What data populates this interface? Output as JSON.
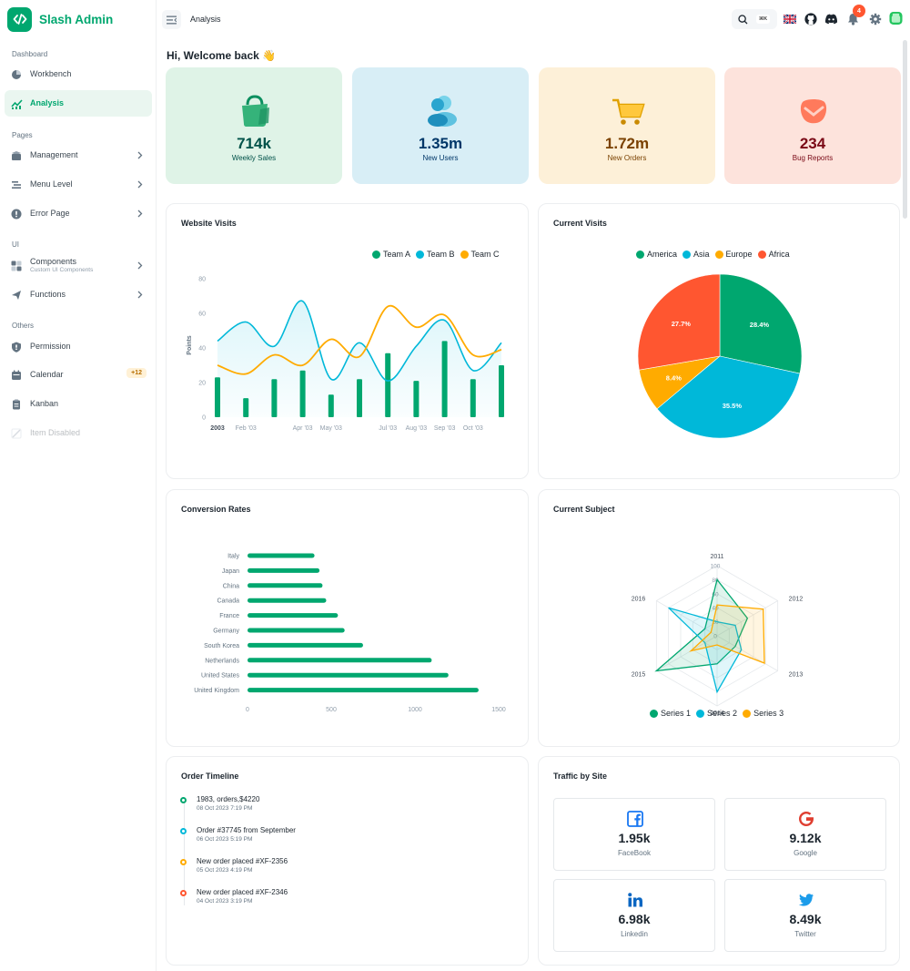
{
  "app": {
    "name": "Slash Admin"
  },
  "header": {
    "breadcrumb": "Analysis",
    "search_shortcut": "⌘K",
    "notification_count": "4"
  },
  "sidebar": {
    "sections": [
      {
        "label": "Dashboard"
      },
      {
        "label": "Pages"
      },
      {
        "label": "UI"
      },
      {
        "label": "Others"
      }
    ],
    "items": [
      {
        "label": "Workbench",
        "icon": "workbench-icon"
      },
      {
        "label": "Analysis",
        "icon": "analysis-icon",
        "active": true
      },
      {
        "label": "Management",
        "icon": "management-icon"
      },
      {
        "label": "Menu Level",
        "icon": "menu-level-icon"
      },
      {
        "label": "Error Page",
        "icon": "error-icon"
      },
      {
        "label": "Components",
        "sublabel": "Custom UI Components",
        "icon": "components-icon"
      },
      {
        "label": "Functions",
        "icon": "functions-icon"
      },
      {
        "label": "Permission",
        "icon": "permission-icon"
      },
      {
        "label": "Calendar",
        "icon": "calendar-icon",
        "badge": "+12"
      },
      {
        "label": "Kanban",
        "icon": "kanban-icon"
      },
      {
        "label": "Item Disabled",
        "icon": "disabled-icon",
        "disabled": true
      }
    ]
  },
  "welcome": "Hi, Welcome back 👋",
  "stats": [
    {
      "value": "714k",
      "label": "Weekly Sales",
      "bg": "#dff3e7",
      "color": "#005249"
    },
    {
      "value": "1.35m",
      "label": "New Users",
      "bg": "#d8eef6",
      "color": "#003768"
    },
    {
      "value": "1.72m",
      "label": "New Orders",
      "bg": "#fdf0d8",
      "color": "#7a4100"
    },
    {
      "value": "234",
      "label": "Bug Reports",
      "bg": "#fde3dc",
      "color": "#7a0916"
    }
  ],
  "cards": {
    "website_visits": "Website Visits",
    "current_visits": "Current Visits",
    "conversion_rates": "Conversion Rates",
    "current_subject": "Current Subject",
    "order_timeline": "Order Timeline",
    "traffic_by_site": "Traffic by Site"
  },
  "chart_data": [
    {
      "type": "line",
      "title": "Website Visits",
      "ylabel": "Points",
      "xlabel": "",
      "ylim": [
        0,
        80
      ],
      "yticks": [
        0,
        20,
        40,
        60,
        80
      ],
      "x": [
        "2003-01-01",
        "2003-02-01",
        "2003-03-01",
        "2003-04-01",
        "2003-05-01",
        "2003-06-01",
        "2003-07-01",
        "2003-08-01",
        "2003-09-01",
        "2003-10-01",
        "2003-11-01"
      ],
      "x_tick_labels": [
        "2003",
        "Feb '03",
        "",
        "Apr '03",
        "May '03",
        "",
        "Jul '03",
        "Aug '03",
        "Sep '03",
        "Oct '03",
        ""
      ],
      "series": [
        {
          "name": "Team A",
          "kind": "bar",
          "color": "#00a76f",
          "values": [
            23,
            11,
            22,
            27,
            13,
            22,
            37,
            21,
            44,
            22,
            30
          ]
        },
        {
          "name": "Team B",
          "kind": "area",
          "color": "#00b8d9",
          "values": [
            44,
            55,
            41,
            67,
            22,
            43,
            21,
            41,
            56,
            27,
            43
          ]
        },
        {
          "name": "Team C",
          "kind": "line",
          "color": "#ffab00",
          "values": [
            30,
            25,
            36,
            30,
            45,
            35,
            64,
            52,
            59,
            36,
            39
          ]
        }
      ],
      "legend": "top-right",
      "grid": false
    },
    {
      "type": "pie",
      "title": "Current Visits",
      "categories": [
        "America",
        "Asia",
        "Europe",
        "Africa"
      ],
      "values": [
        28.4,
        35.5,
        8.4,
        27.7
      ],
      "colors": [
        "#00a76f",
        "#00b8d9",
        "#ffab00",
        "#ff5630"
      ],
      "legend": "top"
    },
    {
      "type": "bar",
      "orientation": "horizontal",
      "title": "Conversion Rates",
      "categories": [
        "Italy",
        "Japan",
        "China",
        "Canada",
        "France",
        "Germany",
        "South Korea",
        "Netherlands",
        "United States",
        "United Kingdom"
      ],
      "values": [
        400,
        430,
        448,
        470,
        540,
        580,
        690,
        1100,
        1200,
        1380
      ],
      "xlim": [
        0,
        1500
      ],
      "xticks": [
        0,
        500,
        1000,
        1500
      ],
      "color": "#00a76f",
      "grid": false
    },
    {
      "type": "radar",
      "title": "Current Subject",
      "categories": [
        "2011",
        "2012",
        "2013",
        "2014",
        "2015",
        "2016"
      ],
      "rlim": [
        0,
        100
      ],
      "rticks": [
        0,
        20,
        40,
        60,
        80,
        100
      ],
      "series": [
        {
          "name": "Series 1",
          "color": "#00a76f",
          "values": [
            80,
            50,
            30,
            40,
            100,
            20
          ]
        },
        {
          "name": "Series 2",
          "color": "#00b8d9",
          "values": [
            20,
            30,
            40,
            80,
            20,
            80
          ]
        },
        {
          "name": "Series 3",
          "color": "#ffab00",
          "values": [
            44,
            76,
            78,
            13,
            43,
            10
          ]
        }
      ],
      "legend": "bottom"
    }
  ],
  "timeline": [
    {
      "title": "1983, orders,$4220",
      "time": "08 Oct 2023 7:19 PM",
      "color": "#00a76f"
    },
    {
      "title": "Order #37745 from September",
      "time": "06 Oct 2023 5:19 PM",
      "color": "#00b8d9"
    },
    {
      "title": "New order placed #XF-2356",
      "time": "05 Oct 2023 4:19 PM",
      "color": "#ffab00"
    },
    {
      "title": "New order placed #XF-2346",
      "time": "04 Oct 2023 3:19 PM",
      "color": "#ff5630"
    }
  ],
  "traffic": [
    {
      "value": "1.95k",
      "label": "FaceBook",
      "icon": "facebook-icon"
    },
    {
      "value": "9.12k",
      "label": "Google",
      "icon": "google-icon"
    },
    {
      "value": "6.98k",
      "label": "Linkedin",
      "icon": "linkedin-icon"
    },
    {
      "value": "8.49k",
      "label": "Twitter",
      "icon": "twitter-icon"
    }
  ]
}
